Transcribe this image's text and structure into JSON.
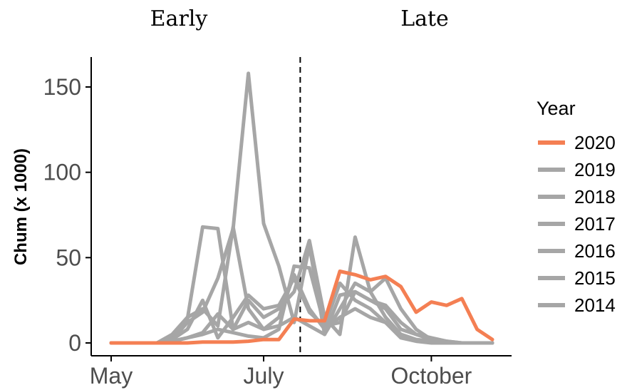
{
  "chart_data": {
    "type": "line",
    "ylabel": "Chum (x 1000)",
    "ylim": [
      0,
      160
    ],
    "yticks": [
      0,
      50,
      100,
      150
    ],
    "x_tick_labels": [
      "May",
      "July",
      "October"
    ],
    "panel_labels": [
      "Early",
      "Late"
    ],
    "divider_label_note": "",
    "legend_title": "Year",
    "legend_position": "right",
    "grid": false,
    "colors": {
      "highlight": "#f47f53",
      "other": "#a6a6a6",
      "axis": "#000000",
      "divider": "#000000"
    },
    "x": [
      0,
      1,
      2,
      3,
      4,
      5,
      6,
      7,
      8,
      9,
      10,
      11,
      12,
      13,
      14,
      15,
      16,
      17,
      18,
      19,
      20,
      21,
      22,
      23,
      24,
      25
    ],
    "x_tick_positions": {
      "May": 0,
      "July": 10,
      "October": 21
    },
    "divider_at": 12.4,
    "series": [
      {
        "name": "2020",
        "highlight": true,
        "values": [
          0,
          0,
          0,
          0,
          0,
          0,
          0.5,
          0.5,
          0.5,
          1,
          2,
          2,
          14,
          13,
          13,
          42,
          40,
          37,
          39,
          33,
          18,
          24,
          22,
          26,
          8,
          2
        ]
      },
      {
        "name": "2019",
        "values": [
          0,
          0,
          0,
          0,
          1,
          3,
          5,
          8,
          6,
          4,
          3,
          8,
          45,
          44,
          10,
          12,
          30,
          25,
          20,
          8,
          5,
          3,
          1,
          0,
          0,
          0
        ]
      },
      {
        "name": "2018",
        "values": [
          0,
          0,
          0,
          0,
          3,
          14,
          68,
          67,
          8,
          25,
          15,
          20,
          30,
          60,
          15,
          5,
          62,
          30,
          15,
          5,
          2,
          1,
          0,
          0,
          0,
          0
        ]
      },
      {
        "name": "2017",
        "values": [
          0,
          0,
          0,
          0,
          2,
          8,
          25,
          3,
          15,
          28,
          20,
          22,
          38,
          18,
          10,
          35,
          25,
          20,
          12,
          5,
          2,
          1,
          0,
          0,
          0,
          0
        ]
      },
      {
        "name": "2016",
        "values": [
          0,
          0,
          0,
          0,
          5,
          15,
          20,
          10,
          68,
          20,
          8,
          15,
          40,
          20,
          8,
          15,
          20,
          15,
          12,
          3,
          1,
          0,
          0,
          0,
          0,
          0
        ]
      },
      {
        "name": "2015",
        "values": [
          0,
          0,
          0,
          0,
          1,
          3,
          6,
          17,
          8,
          12,
          8,
          10,
          15,
          10,
          5,
          28,
          30,
          25,
          22,
          12,
          5,
          2,
          1,
          0,
          0,
          0
        ]
      },
      {
        "name": "2014",
        "values": [
          0,
          0,
          0,
          0,
          2,
          12,
          18,
          38,
          67,
          158,
          70,
          45,
          12,
          57,
          5,
          20,
          35,
          30,
          38,
          20,
          8,
          2,
          0,
          0,
          0,
          0
        ]
      }
    ]
  }
}
